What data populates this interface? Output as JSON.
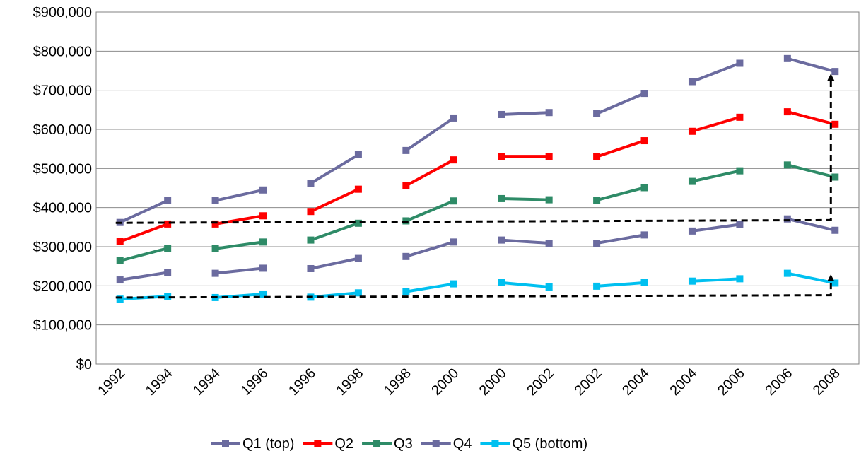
{
  "chart_data": {
    "type": "line",
    "title": "",
    "xlabel": "",
    "ylabel": "",
    "ylim": [
      0,
      900000
    ],
    "y_ticks": [
      "$0",
      "$100,000",
      "$200,000",
      "$300,000",
      "$400,000",
      "$500,000",
      "$600,000",
      "$700,000",
      "$800,000",
      "$900,000"
    ],
    "grid": "horizontal",
    "legend_position": "bottom",
    "x_labels": [
      "1992",
      "1994",
      "1994",
      "1996",
      "1996",
      "1998",
      "1998",
      "2000",
      "2000",
      "2002",
      "2002",
      "2004",
      "2004",
      "2006",
      "2006",
      "2008"
    ],
    "series": [
      {
        "name": "Q1 (top)",
        "color": "#6b6b9f",
        "marker": "square",
        "values": [
          [
            362000,
            418000
          ],
          [
            418000,
            445000
          ],
          [
            462000,
            535000
          ],
          [
            546000,
            629000
          ],
          [
            638000,
            643000
          ],
          [
            640000,
            692000
          ],
          [
            722000,
            769000
          ],
          [
            781000,
            748000
          ]
        ]
      },
      {
        "name": "Q2",
        "color": "#ff0000",
        "marker": "square",
        "values": [
          [
            313000,
            358000
          ],
          [
            358000,
            379000
          ],
          [
            390000,
            447000
          ],
          [
            456000,
            522000
          ],
          [
            531000,
            531000
          ],
          [
            530000,
            571000
          ],
          [
            595000,
            631000
          ],
          [
            645000,
            613000
          ]
        ]
      },
      {
        "name": "Q3",
        "color": "#2e8b67",
        "marker": "square",
        "values": [
          [
            264000,
            296000
          ],
          [
            295000,
            312000
          ],
          [
            317000,
            360000
          ],
          [
            366000,
            417000
          ],
          [
            423000,
            420000
          ],
          [
            419000,
            451000
          ],
          [
            467000,
            494000
          ],
          [
            509000,
            478000
          ]
        ]
      },
      {
        "name": "Q4",
        "color": "#6b6b9f",
        "marker": "square",
        "values": [
          [
            215000,
            234000
          ],
          [
            232000,
            245000
          ],
          [
            244000,
            270000
          ],
          [
            275000,
            312000
          ],
          [
            317000,
            309000
          ],
          [
            309000,
            330000
          ],
          [
            340000,
            357000
          ],
          [
            371000,
            342000
          ]
        ]
      },
      {
        "name": "Q5 (bottom)",
        "color": "#00c0f0",
        "marker": "square",
        "values": [
          [
            166000,
            173000
          ],
          [
            170000,
            179000
          ],
          [
            171000,
            182000
          ],
          [
            185000,
            205000
          ],
          [
            208000,
            197000
          ],
          [
            199000,
            208000
          ],
          [
            212000,
            218000
          ],
          [
            232000,
            207000
          ]
        ]
      }
    ],
    "annotations": [
      {
        "style": "dashed-arrow",
        "from_y": 361000,
        "to_y": 368000,
        "arrow_to_y": 748000
      },
      {
        "style": "dashed-arrow",
        "from_y": 170000,
        "to_y": 176000,
        "arrow_to_y": 235000
      }
    ]
  }
}
